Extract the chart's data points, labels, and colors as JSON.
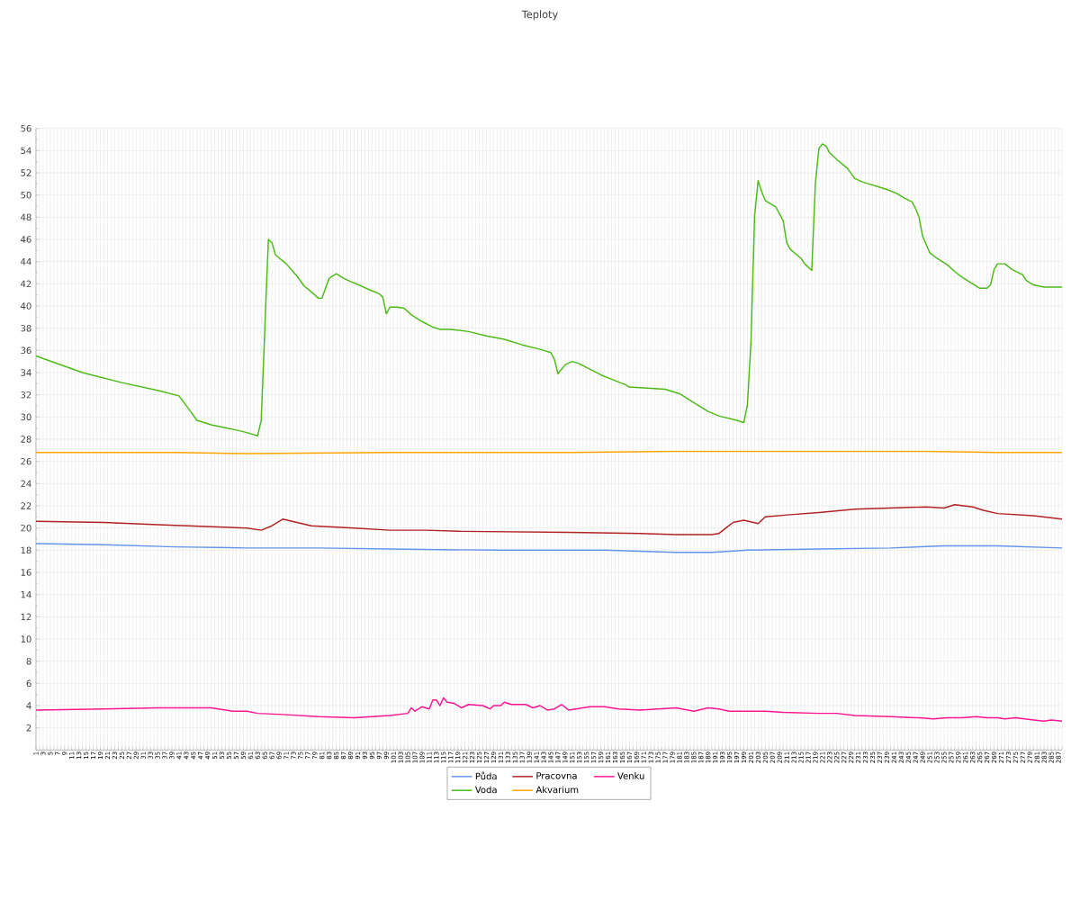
{
  "chart_data": {
    "type": "line",
    "title": "Teploty",
    "xlim": [
      1,
      288
    ],
    "xticks": [
      1,
      {
        "value": 2,
        "label": null
      },
      3,
      {
        "value": 4,
        "label": null
      },
      5,
      {
        "value": 6,
        "label": null
      },
      7,
      {
        "value": 8,
        "label": null
      },
      9,
      {
        "value": 10,
        "label": null
      },
      11,
      {
        "value": 12,
        "label": null
      },
      13,
      {
        "value": 14,
        "label": null
      },
      15,
      {
        "value": 16,
        "label": null
      },
      17,
      {
        "value": 18,
        "label": null
      },
      19,
      {
        "value": 20,
        "label": null
      },
      21,
      {
        "value": 22,
        "label": null
      },
      23,
      {
        "value": 24,
        "label": null
      },
      25,
      {
        "value": 26,
        "label": null
      },
      27,
      {
        "value": 28,
        "label": null
      },
      29,
      {
        "value": 30,
        "label": null
      },
      31,
      {
        "value": 32,
        "label": null
      },
      33,
      {
        "value": 34,
        "label": null
      },
      35,
      {
        "value": 36,
        "label": null
      },
      37,
      {
        "value": 38,
        "label": null
      },
      39,
      {
        "value": 40,
        "label": null
      },
      41,
      {
        "value": 42,
        "label": null
      },
      43,
      {
        "value": 44,
        "label": null
      },
      45,
      {
        "value": 46,
        "label": null
      },
      47,
      {
        "value": 48,
        "label": null
      },
      49,
      {
        "value": 50,
        "label": null
      },
      51,
      {
        "value": 52,
        "label": null
      },
      53,
      {
        "value": 54,
        "label": null
      },
      55,
      {
        "value": 56,
        "label": null
      },
      57,
      {
        "value": 58,
        "label": null
      },
      59,
      {
        "value": 60,
        "label": null
      },
      61,
      {
        "value": 62,
        "label": null
      },
      63,
      {
        "value": 64,
        "label": null
      },
      65,
      {
        "value": 66,
        "label": null
      },
      67,
      {
        "value": 68,
        "label": null
      },
      69,
      {
        "value": 70,
        "label": null
      },
      71,
      {
        "value": 72,
        "label": null
      },
      73,
      {
        "value": 74,
        "label": null
      },
      75,
      {
        "value": 76,
        "label": null
      },
      77,
      {
        "value": 78,
        "label": null
      },
      79,
      {
        "value": 80,
        "label": null
      },
      81,
      {
        "value": 82,
        "label": null
      },
      83,
      {
        "value": 84,
        "label": null
      },
      85,
      {
        "value": 86,
        "label": null
      },
      87,
      {
        "value": 88,
        "label": null
      },
      89,
      {
        "value": 90,
        "label": null
      },
      91,
      {
        "value": 92,
        "label": null
      },
      93,
      {
        "value": 94,
        "label": null
      },
      95,
      {
        "value": 96,
        "label": null
      },
      97,
      {
        "value": 98,
        "label": null
      },
      99,
      {
        "value": 100,
        "label": null
      },
      101,
      {
        "value": 102,
        "label": null
      },
      103,
      {
        "value": 104,
        "label": null
      },
      105,
      {
        "value": 106,
        "label": null
      },
      107,
      {
        "value": 108,
        "label": null
      },
      109,
      {
        "value": 110,
        "label": null
      },
      111,
      {
        "value": 112,
        "label": null
      },
      113,
      {
        "value": 114,
        "label": null
      },
      115,
      {
        "value": 116,
        "label": null
      },
      117,
      {
        "value": 118,
        "label": null
      },
      119,
      {
        "value": 120,
        "label": null
      },
      121,
      {
        "value": 122,
        "label": null
      },
      123,
      {
        "value": 124,
        "label": null
      },
      125,
      {
        "value": 126,
        "label": null
      },
      127,
      {
        "value": 128,
        "label": null
      },
      129,
      {
        "value": 130,
        "label": null
      },
      131,
      {
        "value": 132,
        "label": null
      },
      133,
      {
        "value": 134,
        "label": null
      },
      135,
      {
        "value": 136,
        "label": null
      },
      137,
      {
        "value": 138,
        "label": null
      },
      139,
      {
        "value": 140,
        "label": null
      },
      141,
      {
        "value": 142,
        "label": null
      },
      143,
      {
        "value": 144,
        "label": null
      },
      145,
      {
        "value": 146,
        "label": null
      },
      147,
      {
        "value": 148,
        "label": null
      },
      149,
      {
        "value": 150,
        "label": null
      },
      151,
      {
        "value": 152,
        "label": null
      },
      153,
      {
        "value": 154,
        "label": null
      },
      155,
      {
        "value": 156,
        "label": null
      },
      157,
      {
        "value": 158,
        "label": null
      },
      159,
      {
        "value": 160,
        "label": null
      },
      161,
      {
        "value": 162,
        "label": null
      },
      163,
      {
        "value": 164,
        "label": null
      },
      165,
      {
        "value": 166,
        "label": null
      },
      167,
      {
        "value": 168,
        "label": null
      },
      169,
      {
        "value": 170,
        "label": null
      },
      171,
      {
        "value": 172,
        "label": null
      },
      173,
      {
        "value": 174,
        "label": null
      },
      175,
      {
        "value": 176,
        "label": null
      },
      177,
      {
        "value": 178,
        "label": null
      },
      179,
      {
        "value": 180,
        "label": null
      },
      181,
      {
        "value": 182,
        "label": null
      },
      183,
      {
        "value": 184,
        "label": null
      },
      185,
      {
        "value": 186,
        "label": null
      },
      187,
      {
        "value": 188,
        "label": null
      },
      189,
      {
        "value": 190,
        "label": null
      },
      191,
      {
        "value": 192,
        "label": null
      },
      193,
      {
        "value": 194,
        "label": null
      },
      195,
      {
        "value": 196,
        "label": null
      },
      197,
      {
        "value": 198,
        "label": null
      },
      199,
      {
        "value": 200,
        "label": null
      },
      201,
      {
        "value": 202,
        "label": null
      },
      203,
      {
        "value": 204,
        "label": null
      },
      205,
      {
        "value": 206,
        "label": null
      },
      207,
      {
        "value": 208,
        "label": null
      },
      209,
      {
        "value": 210,
        "label": null
      },
      211,
      {
        "value": 212,
        "label": null
      },
      213,
      {
        "value": 214,
        "label": null
      },
      215,
      {
        "value": 216,
        "label": null
      },
      217,
      {
        "value": 218,
        "label": null
      },
      219,
      {
        "value": 220,
        "label": null
      },
      221,
      {
        "value": 222,
        "label": null
      },
      223,
      {
        "value": 224,
        "label": null
      },
      225,
      {
        "value": 226,
        "label": null
      },
      227,
      {
        "value": 228,
        "label": null
      },
      229,
      {
        "value": 230,
        "label": null
      },
      231,
      {
        "value": 232,
        "label": null
      },
      233,
      {
        "value": 234,
        "label": null
      },
      235,
      {
        "value": 236,
        "label": null
      },
      237,
      {
        "value": 238,
        "label": null
      },
      239,
      {
        "value": 240,
        "label": null
      },
      241,
      {
        "value": 242,
        "label": null
      },
      243,
      {
        "value": 244,
        "label": null
      },
      245,
      {
        "value": 246,
        "label": null
      },
      247,
      {
        "value": 248,
        "label": null
      },
      249,
      {
        "value": 250,
        "label": null
      },
      251,
      {
        "value": 252,
        "label": null
      },
      253,
      {
        "value": 254,
        "label": null
      },
      255,
      {
        "value": 256,
        "label": null
      },
      257,
      {
        "value": 258,
        "label": null
      },
      259,
      {
        "value": 260,
        "label": null
      },
      261,
      {
        "value": 262,
        "label": null
      },
      263,
      {
        "value": 264,
        "label": null
      },
      265,
      {
        "value": 266,
        "label": null
      },
      267,
      {
        "value": 268,
        "label": null
      },
      269,
      {
        "value": 270,
        "label": null
      },
      271,
      {
        "value": 272,
        "label": null
      },
      273,
      {
        "value": 274,
        "label": null
      },
      275,
      {
        "value": 276,
        "label": null
      },
      277,
      {
        "value": 278,
        "label": null
      },
      279,
      {
        "value": 280,
        "label": null
      },
      281,
      {
        "value": 282,
        "label": null
      },
      283,
      {
        "value": 284,
        "label": null
      },
      285,
      {
        "value": 286,
        "label": null
      },
      287,
      {
        "value": 288,
        "label": null
      }
    ],
    "ylim": [
      0,
      56
    ],
    "yticks": [
      2,
      4,
      6,
      8,
      10,
      12,
      14,
      16,
      18,
      20,
      22,
      24,
      26,
      28,
      30,
      32,
      34,
      36,
      38,
      40,
      42,
      44,
      46,
      48,
      50,
      52,
      54,
      56
    ],
    "grid": true,
    "legend": "bottom",
    "series": [
      {
        "name": "Půda",
        "color": "#6495ed",
        "x": [
          1,
          20,
          40,
          60,
          80,
          100,
          130,
          160,
          170,
          180,
          190,
          200,
          220,
          240,
          255,
          270,
          288
        ],
        "values": [
          18.6,
          18.5,
          18.3,
          18.2,
          18.2,
          18.1,
          18.0,
          18.0,
          17.9,
          17.8,
          17.8,
          18.0,
          18.1,
          18.2,
          18.4,
          18.4,
          18.2
        ]
      },
      {
        "name": "Voda",
        "color": "#4cbb17",
        "x": [
          1,
          14,
          25,
          35,
          41,
          44,
          46,
          50,
          56,
          60,
          63,
          64,
          66,
          67,
          68,
          71,
          74,
          76,
          79,
          80,
          81,
          82,
          83,
          85,
          87,
          89,
          92,
          94,
          97,
          98,
          99,
          100,
          102,
          104,
          106,
          109,
          112,
          114,
          117,
          122,
          127,
          132,
          137,
          142,
          145,
          146,
          147,
          149,
          151,
          153,
          156,
          159,
          162,
          166,
          167,
          172,
          177,
          181,
          183,
          186,
          189,
          192,
          197,
          199,
          200,
          201,
          202,
          203,
          204,
          205,
          207,
          208,
          210,
          211,
          212,
          215,
          216,
          218,
          219,
          220,
          221,
          222,
          223,
          225,
          228,
          230,
          232,
          234,
          237,
          239,
          242,
          244,
          246,
          247,
          248,
          249,
          251,
          253,
          256,
          258,
          260,
          263,
          265,
          267,
          268,
          269,
          270,
          272,
          274,
          277,
          278,
          280,
          283,
          285,
          288
        ],
        "values": [
          35.5,
          34.0,
          33.1,
          32.4,
          31.9,
          30.6,
          29.7,
          29.3,
          28.9,
          28.6,
          28.3,
          29.7,
          46.0,
          45.7,
          44.6,
          43.8,
          42.7,
          41.8,
          41.0,
          40.7,
          40.7,
          41.6,
          42.5,
          42.9,
          42.5,
          42.2,
          41.8,
          41.5,
          41.1,
          40.8,
          39.3,
          39.9,
          39.9,
          39.8,
          39.2,
          38.6,
          38.1,
          37.9,
          37.9,
          37.7,
          37.3,
          37.0,
          36.5,
          36.1,
          35.8,
          35.2,
          33.9,
          34.7,
          35.0,
          34.8,
          34.3,
          33.8,
          33.4,
          32.9,
          32.7,
          32.6,
          32.5,
          32.1,
          31.7,
          31.1,
          30.5,
          30.1,
          29.7,
          29.5,
          31.1,
          36.8,
          48.1,
          51.3,
          50.3,
          49.5,
          49.1,
          48.9,
          47.7,
          45.7,
          45.1,
          44.3,
          43.8,
          43.2,
          51.0,
          54.2,
          54.6,
          54.4,
          53.8,
          53.2,
          52.4,
          51.5,
          51.2,
          51.0,
          50.7,
          50.5,
          50.1,
          49.7,
          49.4,
          48.8,
          48.0,
          46.3,
          44.8,
          44.3,
          43.7,
          43.1,
          42.6,
          42.0,
          41.6,
          41.6,
          41.9,
          43.3,
          43.8,
          43.8,
          43.3,
          42.8,
          42.3,
          41.9,
          41.7,
          41.7,
          41.7
        ]
      },
      {
        "name": "Pracovna",
        "color": "#b22222",
        "x": [
          1,
          20,
          35,
          60,
          64,
          67,
          70,
          74,
          78,
          90,
          100,
          110,
          120,
          150,
          170,
          180,
          190,
          192,
          194,
          196,
          199,
          203,
          205,
          212,
          220,
          230,
          240,
          250,
          255,
          258,
          263,
          266,
          270,
          280,
          288
        ],
        "values": [
          20.6,
          20.5,
          20.3,
          20.0,
          19.8,
          20.2,
          20.8,
          20.5,
          20.2,
          20.0,
          19.8,
          19.8,
          19.7,
          19.6,
          19.5,
          19.4,
          19.4,
          19.5,
          20.0,
          20.5,
          20.7,
          20.4,
          21.0,
          21.2,
          21.4,
          21.7,
          21.8,
          21.9,
          21.8,
          22.1,
          21.9,
          21.6,
          21.3,
          21.1,
          20.8
        ]
      },
      {
        "name": "Akvarium",
        "color": "#ffa500",
        "x": [
          1,
          40,
          60,
          100,
          150,
          180,
          220,
          250,
          270,
          288
        ],
        "values": [
          26.8,
          26.8,
          26.7,
          26.8,
          26.8,
          26.9,
          26.9,
          26.9,
          26.8,
          26.8
        ]
      },
      {
        "name": "Venku",
        "color": "#ff1493",
        "x": [
          1,
          20,
          35,
          50,
          56,
          60,
          63,
          70,
          80,
          90,
          95,
          100,
          105,
          106,
          107,
          109,
          111,
          112,
          113,
          114,
          115,
          116,
          118,
          120,
          122,
          126,
          128,
          129,
          131,
          132,
          134,
          138,
          140,
          142,
          144,
          146,
          148,
          150,
          152,
          156,
          160,
          164,
          170,
          175,
          180,
          185,
          189,
          192,
          195,
          200,
          205,
          210,
          220,
          225,
          230,
          240,
          248,
          252,
          256,
          260,
          264,
          267,
          270,
          272,
          275,
          280,
          283,
          285,
          288
        ],
        "values": [
          3.6,
          3.7,
          3.8,
          3.8,
          3.5,
          3.5,
          3.3,
          3.2,
          3.0,
          2.9,
          3.0,
          3.1,
          3.3,
          3.8,
          3.5,
          3.9,
          3.7,
          4.5,
          4.5,
          4.0,
          4.7,
          4.3,
          4.2,
          3.8,
          4.1,
          4.0,
          3.7,
          4.0,
          4.0,
          4.3,
          4.1,
          4.1,
          3.8,
          4.0,
          3.6,
          3.7,
          4.1,
          3.6,
          3.7,
          3.9,
          3.9,
          3.7,
          3.6,
          3.7,
          3.8,
          3.5,
          3.8,
          3.7,
          3.5,
          3.5,
          3.5,
          3.4,
          3.3,
          3.3,
          3.1,
          3.0,
          2.9,
          2.8,
          2.9,
          2.9,
          3.0,
          2.9,
          2.9,
          2.8,
          2.9,
          2.7,
          2.6,
          2.7,
          2.6
        ]
      }
    ]
  }
}
